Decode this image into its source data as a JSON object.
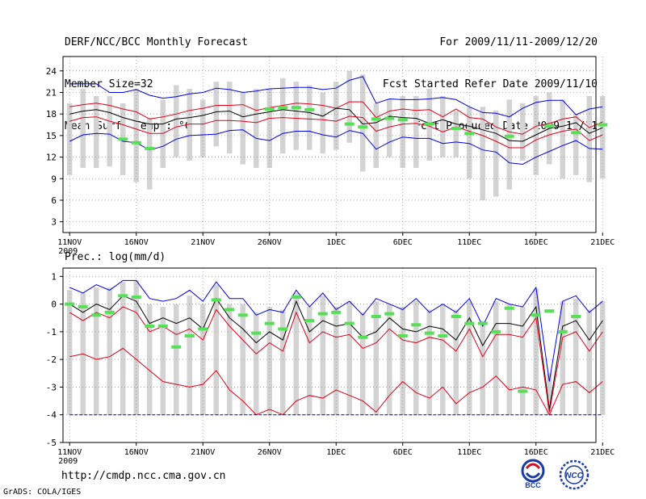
{
  "header": {
    "title": "DERF/NCC/BCC Monthly Forecast",
    "member_size": "Member Size=32",
    "variable": "Mean Surf. Temp.: °C",
    "forecast_period": "For 2009/11/11-2009/12/20",
    "started_refer": "Fcst Started Refer Date 2009/11/10",
    "produced": "Fcst Produced Date 2009/11/11"
  },
  "footer": {
    "url": "http://cmdp.ncc.cma.gov.cn",
    "grads": "GrADS: COLA/IGES"
  },
  "logos": {
    "bcc": "BCC",
    "ncc": "NCC"
  },
  "colors": {
    "bar": "#d3d3d3",
    "mean": "#000000",
    "spread": "#e0001a",
    "extreme": "#0000e6",
    "obs": "#55e055",
    "grid": "#999999"
  },
  "chart_data": [
    {
      "type": "line",
      "title": "Mean Surf. Temp.: °C",
      "xlabel": "",
      "ylabel": "",
      "xlim": [
        0.5,
        40.5
      ],
      "ylim": [
        1.5,
        26
      ],
      "yticks": [
        3,
        6,
        9,
        12,
        15,
        18,
        21,
        24
      ],
      "xticks": [
        {
          "day": 1,
          "label": "11NOV",
          "sub": "2009"
        },
        {
          "day": 6,
          "label": "16NOV"
        },
        {
          "day": 11,
          "label": "21NOV"
        },
        {
          "day": 16,
          "label": "26NOV"
        },
        {
          "day": 21,
          "label": "1DEC"
        },
        {
          "day": 26,
          "label": "6DEC"
        },
        {
          "day": 31,
          "label": "11DEC"
        },
        {
          "day": 36,
          "label": "16DEC"
        },
        {
          "day": 41,
          "label": "21DEC"
        }
      ],
      "grid": true,
      "series": [
        {
          "name": "ensemble max",
          "values": [
            22.2,
            22.2,
            22.2,
            21.0,
            21.0,
            21.4,
            20.6,
            20.2,
            20.4,
            20.8,
            21.0,
            21.6,
            21.4,
            21.0,
            21.2,
            21.5,
            21.6,
            21.7,
            21.7,
            21.4,
            21.6,
            22.7,
            23.2,
            19.5,
            20.1,
            20.0,
            20.0,
            20.1,
            20.3,
            20.0,
            19.0,
            18.2,
            18.1,
            17.6,
            18.8,
            19.6,
            19.9,
            19.9,
            17.9,
            18.7,
            19.0
          ]
        },
        {
          "name": "upper spread",
          "values": [
            19.0,
            19.3,
            19.5,
            19.2,
            18.7,
            18.3,
            17.3,
            17.6,
            18.0,
            18.5,
            18.8,
            19.2,
            19.2,
            19.3,
            18.5,
            18.9,
            19.2,
            19.5,
            19.4,
            19.2,
            18.8,
            19.7,
            19.7,
            17.5,
            18.4,
            18.7,
            18.5,
            18.6,
            17.6,
            18.7,
            17.5,
            17.3,
            16.2,
            15.5,
            15.2,
            16.3,
            16.7,
            17.3,
            17.6,
            16.1,
            16.9
          ]
        },
        {
          "name": "ensemble mean",
          "values": [
            18.0,
            18.4,
            18.6,
            18.2,
            17.5,
            17.0,
            16.6,
            16.6,
            17.3,
            17.5,
            17.8,
            18.3,
            18.4,
            17.6,
            18.0,
            18.3,
            18.6,
            18.4,
            18.2,
            17.7,
            18.8,
            18.6,
            16.6,
            16.8,
            17.7,
            17.5,
            17.4,
            16.7,
            17.2,
            16.6,
            16.3,
            15.8,
            15.3,
            14.3,
            14.2,
            15.1,
            16.0,
            16.3,
            16.8,
            15.3,
            16.1
          ]
        },
        {
          "name": "lower spread",
          "values": [
            17.0,
            17.5,
            17.6,
            17.0,
            16.5,
            15.9,
            15.3,
            15.3,
            16.2,
            16.6,
            16.6,
            17.1,
            17.1,
            17.0,
            16.8,
            17.4,
            17.5,
            17.4,
            17.3,
            17.2,
            17.0,
            17.7,
            17.5,
            15.6,
            16.2,
            16.6,
            16.7,
            16.3,
            15.5,
            16.2,
            15.6,
            15.0,
            14.2,
            13.3,
            13.3,
            14.4,
            15.1,
            15.6,
            15.9,
            14.3,
            15.1
          ]
        },
        {
          "name": "ensemble min",
          "values": [
            14.2,
            15.1,
            15.3,
            15.2,
            14.2,
            14.0,
            13.0,
            13.5,
            14.5,
            15.0,
            15.1,
            15.2,
            15.7,
            15.8,
            14.6,
            14.3,
            15.3,
            15.6,
            15.6,
            15.1,
            14.8,
            15.7,
            15.3,
            13.1,
            14.1,
            14.8,
            14.6,
            14.6,
            13.9,
            14.1,
            13.9,
            13.0,
            12.7,
            11.2,
            11.0,
            12.0,
            12.8,
            13.6,
            14.3,
            13.2,
            13.1
          ]
        }
      ],
      "observed": [
        null,
        null,
        null,
        null,
        14.5,
        14.0,
        13.2,
        null,
        null,
        null,
        null,
        null,
        null,
        null,
        null,
        18.7,
        18.9,
        18.9,
        18.6,
        null,
        null,
        16.6,
        16.2,
        17.3,
        17.4,
        17.2,
        null,
        16.6,
        null,
        16.0,
        15.3,
        null,
        null,
        14.9,
        null,
        null,
        16.3,
        null,
        15.4,
        null,
        16.5
      ],
      "bars": [
        [
          9.5,
          19.5
        ],
        [
          10.5,
          21.5
        ],
        [
          10.5,
          20.5
        ],
        [
          10.7,
          20.5
        ],
        [
          9.5,
          19.5
        ],
        [
          8.5,
          21.5
        ],
        [
          7.5,
          17.5
        ],
        [
          10.5,
          20.0
        ],
        [
          12.0,
          22.0
        ],
        [
          11.5,
          21.5
        ],
        [
          12.0,
          20.0
        ],
        [
          13.5,
          22.5
        ],
        [
          12.5,
          22.5
        ],
        [
          11.0,
          21.0
        ],
        [
          10.5,
          21.5
        ],
        [
          10.5,
          21.5
        ],
        [
          12.5,
          23.0
        ],
        [
          13.0,
          22.5
        ],
        [
          13.0,
          22.0
        ],
        [
          12.5,
          21.0
        ],
        [
          13.0,
          22.5
        ],
        [
          14.0,
          24.0
        ],
        [
          10.0,
          23.5
        ],
        [
          10.5,
          19.5
        ],
        [
          12.0,
          20.0
        ],
        [
          10.5,
          20.5
        ],
        [
          10.5,
          20.5
        ],
        [
          11.5,
          21.5
        ],
        [
          12.0,
          20.5
        ],
        [
          12.0,
          18.5
        ],
        [
          9.0,
          19.0
        ],
        [
          6.0,
          19.0
        ],
        [
          6.5,
          18.5
        ],
        [
          7.5,
          20.0
        ],
        [
          11.5,
          19.5
        ],
        [
          9.5,
          20.5
        ],
        [
          11.0,
          21.0
        ],
        [
          9.0,
          20.0
        ],
        [
          9.5,
          18.0
        ],
        [
          8.5,
          20.5
        ],
        [
          9.0,
          20.5
        ]
      ]
    },
    {
      "type": "line",
      "title": "Prec.: log(mm/d)",
      "xlabel": "",
      "ylabel": "",
      "xlim": [
        0.5,
        40.5
      ],
      "ylim": [
        -5,
        1.3
      ],
      "yticks": [
        -5,
        -4,
        -3,
        -2,
        -1,
        0,
        1
      ],
      "xticks": [
        {
          "day": 1,
          "label": "11NOV",
          "sub": "2009"
        },
        {
          "day": 6,
          "label": "16NOV"
        },
        {
          "day": 11,
          "label": "21NOV"
        },
        {
          "day": 16,
          "label": "26NOV"
        },
        {
          "day": 21,
          "label": "1DEC"
        },
        {
          "day": 26,
          "label": "6DEC"
        },
        {
          "day": 31,
          "label": "11DEC"
        },
        {
          "day": 36,
          "label": "16DEC"
        },
        {
          "day": 41,
          "label": "21DEC"
        }
      ],
      "grid": true,
      "series": [
        {
          "name": "ensemble max",
          "values": [
            0.6,
            0.4,
            0.7,
            0.5,
            0.85,
            0.85,
            0.2,
            0.1,
            0.2,
            0.5,
            0.1,
            0.8,
            0.2,
            0.2,
            -0.4,
            -0.2,
            -0.3,
            0.5,
            -0.1,
            0.4,
            -0.2,
            0.1,
            -0.4,
            0.2,
            0.0,
            -0.2,
            0.2,
            -0.3,
            0.0,
            -0.3,
            0.2,
            -0.8,
            0.2,
            0.0,
            -0.1,
            0.6,
            -2.8,
            0.1,
            0.3,
            -0.3,
            0.1
          ]
        },
        {
          "name": "ensemble mean",
          "values": [
            0.0,
            -0.3,
            0.0,
            -0.2,
            0.3,
            0.1,
            -0.7,
            -0.5,
            -0.7,
            -0.5,
            -0.9,
            0.2,
            -0.5,
            -0.9,
            -1.4,
            -1.0,
            -1.3,
            0.1,
            -1.0,
            -0.6,
            -0.8,
            -0.7,
            -1.2,
            -1.0,
            -0.5,
            -0.9,
            -1.0,
            -0.8,
            -0.9,
            -1.3,
            -0.5,
            -1.5,
            -0.7,
            -0.7,
            -0.8,
            -0.1,
            -3.8,
            -0.8,
            -0.6,
            -1.3,
            -0.6
          ]
        },
        {
          "name": "upper spread",
          "values": [
            -0.3,
            -0.6,
            -0.3,
            -0.5,
            -0.1,
            -0.3,
            -1.0,
            -0.8,
            -1.1,
            -0.9,
            -1.3,
            -0.2,
            -0.8,
            -1.3,
            -1.8,
            -1.4,
            -1.7,
            -0.3,
            -1.4,
            -1.0,
            -1.2,
            -1.1,
            -1.6,
            -1.4,
            -0.9,
            -1.3,
            -1.4,
            -1.2,
            -1.3,
            -1.7,
            -0.9,
            -1.9,
            -1.1,
            -1.1,
            -1.2,
            -0.5,
            -3.9,
            -1.2,
            -1.0,
            -1.7,
            -1.0
          ]
        },
        {
          "name": "lower spread",
          "values": [
            -1.9,
            -1.8,
            -2.0,
            -1.9,
            -1.6,
            -2.0,
            -2.4,
            -2.8,
            -2.9,
            -3.0,
            -2.9,
            -2.4,
            -3.1,
            -3.5,
            -4.0,
            -3.8,
            -4.0,
            -3.5,
            -3.3,
            -3.4,
            -3.1,
            -3.3,
            -3.5,
            -3.9,
            -3.3,
            -2.8,
            -3.2,
            -3.4,
            -3.0,
            -3.6,
            -3.2,
            -3.0,
            -2.6,
            -3.1,
            -3.0,
            -3.1,
            -4.0,
            -2.9,
            -2.8,
            -3.2,
            -2.8
          ]
        },
        {
          "name": "ensemble min",
          "values": [
            -4,
            -4,
            -4,
            -4,
            -4,
            -4,
            -4,
            -4,
            -4,
            -4,
            -4,
            -4,
            -4,
            -4,
            -4,
            -4,
            -4,
            -4,
            -4,
            -4,
            -4,
            -4,
            -4,
            -4,
            -4,
            -4,
            -4,
            -4,
            -4,
            -4,
            -4,
            -4,
            -4,
            -4,
            -4,
            -4,
            -4,
            -4,
            -4,
            -4,
            -4
          ]
        }
      ],
      "observed": [
        0.0,
        -0.1,
        -0.4,
        -0.3,
        0.3,
        0.25,
        -0.8,
        -0.8,
        -1.55,
        -1.15,
        -0.9,
        0.15,
        -0.2,
        -0.4,
        -1.05,
        -0.7,
        -0.9,
        0.25,
        -0.6,
        -0.35,
        -0.3,
        -0.7,
        -1.2,
        -0.45,
        -0.35,
        -1.15,
        -0.75,
        -1.05,
        -1.15,
        -0.45,
        -0.7,
        -0.7,
        -1.0,
        -0.15,
        -3.15,
        -0.4,
        -0.25,
        -1.0,
        -0.45,
        null,
        null
      ],
      "bars": [
        [
          -4,
          0.5
        ],
        [
          -4,
          0.4
        ],
        [
          -4,
          0.6
        ],
        [
          -4,
          0.6
        ],
        [
          -4,
          0.8
        ],
        [
          -4,
          0.85
        ],
        [
          -4,
          0.0
        ],
        [
          -4,
          -0.1
        ],
        [
          -4,
          0.0
        ],
        [
          -4,
          0.3
        ],
        [
          -4,
          0.0
        ],
        [
          -4,
          0.7
        ],
        [
          -4,
          0.0
        ],
        [
          -4,
          0.0
        ],
        [
          -4,
          -0.3
        ],
        [
          -4,
          -0.1
        ],
        [
          -4,
          -0.2
        ],
        [
          -4,
          0.4
        ],
        [
          -4,
          -0.1
        ],
        [
          -4,
          0.3
        ],
        [
          -4,
          -0.1
        ],
        [
          -4,
          0.1
        ],
        [
          -4,
          -0.3
        ],
        [
          -4,
          0.1
        ],
        [
          -4,
          0.0
        ],
        [
          -4,
          -0.1
        ],
        [
          -4,
          0.1
        ],
        [
          -4,
          -0.2
        ],
        [
          -4,
          0.0
        ],
        [
          -4,
          -0.2
        ],
        [
          -4,
          0.1
        ],
        [
          -4,
          -0.6
        ],
        [
          -4,
          0.1
        ],
        [
          -4,
          0.0
        ],
        [
          -4,
          -0.1
        ],
        [
          -4,
          0.55
        ],
        [
          -4,
          -2.5
        ],
        [
          -4,
          0.1
        ],
        [
          -4,
          0.2
        ],
        [
          -4,
          -0.2
        ],
        [
          -4,
          0.1
        ]
      ]
    }
  ]
}
